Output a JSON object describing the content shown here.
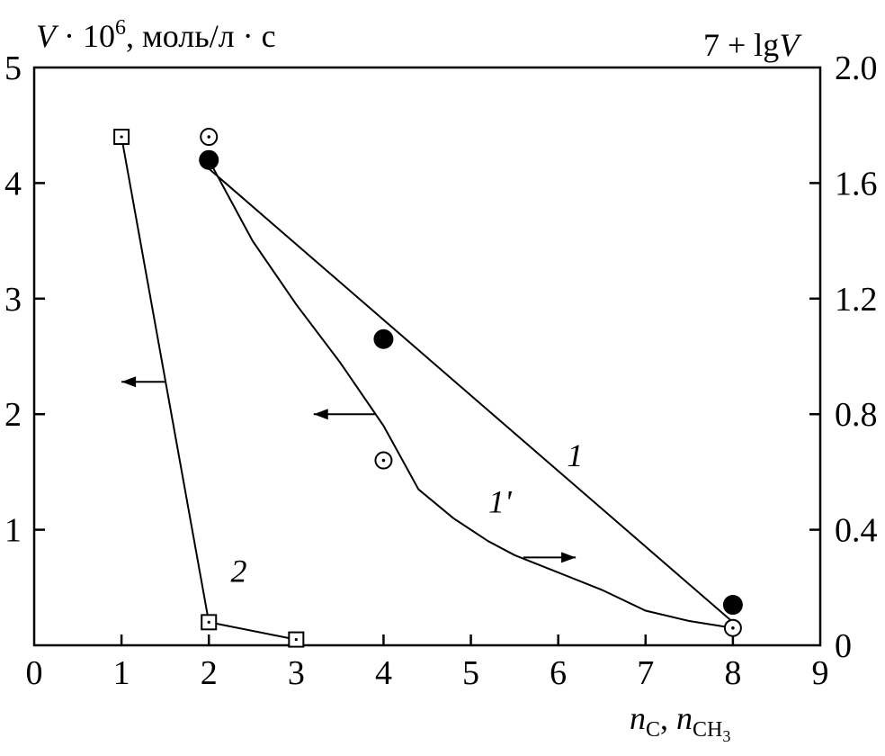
{
  "chart_data": {
    "type": "line",
    "x_axis": {
      "label_main": "n",
      "label_sub1": "C",
      "label_sep": ", ",
      "label_sub2": "CH",
      "label_sub2_index": "3",
      "range": [
        0,
        9
      ],
      "ticks": [
        "0",
        "1",
        "2",
        "3",
        "4",
        "5",
        "6",
        "7",
        "8",
        "9"
      ]
    },
    "y_left": {
      "label_var": "V",
      "label_mult": " · 10",
      "label_exp": "6",
      "label_units": ", моль/л · с",
      "range": [
        0,
        5
      ],
      "ticks": [
        "1",
        "2",
        "3",
        "4",
        "5"
      ]
    },
    "y_right": {
      "label_prefix": "7 + lg",
      "label_var": "V",
      "range": [
        0,
        2.0
      ],
      "ticks": [
        "0",
        "0.4",
        "0.8",
        "1.2",
        "1.6",
        "2.0"
      ]
    },
    "series": [
      {
        "name": "1",
        "axis": "left",
        "marker": "circle-dot",
        "points": [
          [
            2,
            4.4
          ],
          [
            4,
            1.6
          ],
          [
            8,
            0.15
          ]
        ],
        "curve": [
          [
            2,
            4.2
          ],
          [
            2.5,
            3.5
          ],
          [
            3,
            2.95
          ],
          [
            3.5,
            2.45
          ],
          [
            4,
            1.9
          ],
          [
            4.4,
            1.35
          ],
          [
            4.8,
            1.1
          ],
          [
            5.2,
            0.9
          ],
          [
            5.5,
            0.78
          ],
          [
            6.5,
            0.48
          ],
          [
            7,
            0.3
          ],
          [
            7.5,
            0.21
          ],
          [
            8,
            0.15
          ]
        ],
        "label_at": [
          6.1,
          1.55
        ]
      },
      {
        "name": "1'",
        "axis": "right",
        "marker": "filled-circle",
        "points": [
          [
            2,
            1.68
          ],
          [
            4,
            1.06
          ],
          [
            8,
            0.14
          ]
        ],
        "curve": [
          [
            2,
            1.65
          ],
          [
            8,
            0.08
          ]
        ],
        "label_at": [
          5.2,
          1.15
        ]
      },
      {
        "name": "2",
        "axis": "left",
        "marker": "square-dot",
        "points": [
          [
            1,
            4.4
          ],
          [
            2,
            0.2
          ],
          [
            3,
            0.05
          ]
        ],
        "curve": [
          [
            1,
            4.4
          ],
          [
            2,
            0.2
          ],
          [
            3,
            0.05
          ]
        ],
        "label_at": [
          2.25,
          0.55
        ]
      }
    ],
    "arrows": [
      {
        "series": "2",
        "direction": "left",
        "from": [
          1.5,
          2.28
        ],
        "to": [
          1.0,
          2.28
        ]
      },
      {
        "series": "1",
        "direction": "left",
        "from": [
          3.9,
          2.0
        ],
        "to": [
          3.2,
          2.0
        ]
      },
      {
        "series": "1'",
        "direction": "right",
        "from": [
          5.6,
          0.76
        ],
        "to": [
          6.2,
          0.76
        ]
      }
    ]
  }
}
